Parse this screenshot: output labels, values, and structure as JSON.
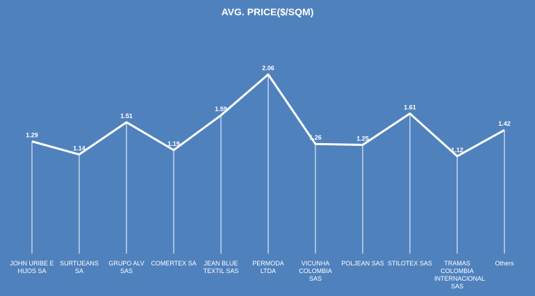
{
  "chart_data": {
    "type": "line",
    "title": "AVG. PRICE($/SQM)",
    "categories": [
      "JOHN URIBE E HIJOS SA",
      "SURTIJEANS SA",
      "GRUPO ALV SAS",
      "COMERTEX SA",
      "JEAN BLUE TEXTIL SAS",
      "PERMODA LTDA",
      "VICUNHA COLOMBIA SAS",
      "POLJEAN SAS",
      "STILOTEX SAS",
      "TRAMAS COLOMBIA INTERNACIONAL SAS",
      "Others"
    ],
    "values": [
      1.29,
      1.14,
      1.51,
      1.19,
      1.59,
      2.06,
      1.26,
      1.25,
      1.61,
      1.12,
      1.42
    ],
    "color": "#ffffff",
    "ylim": [
      0,
      2.5
    ]
  }
}
